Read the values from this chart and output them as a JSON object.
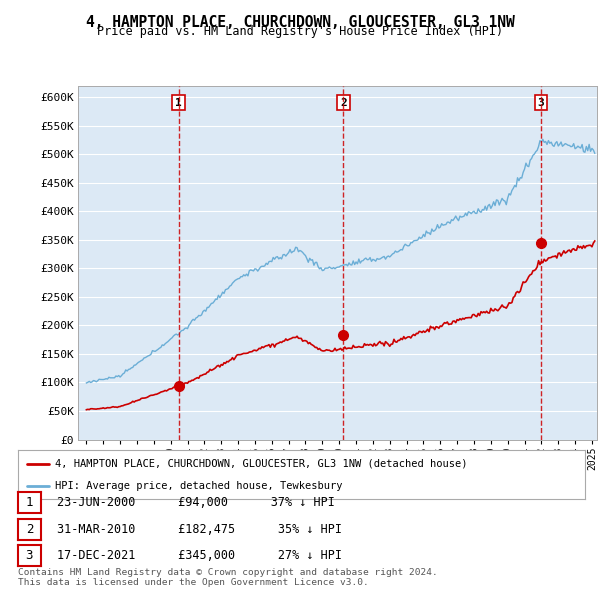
{
  "title": "4, HAMPTON PLACE, CHURCHDOWN, GLOUCESTER, GL3 1NW",
  "subtitle": "Price paid vs. HM Land Registry's House Price Index (HPI)",
  "ylabel_ticks": [
    "£0",
    "£50K",
    "£100K",
    "£150K",
    "£200K",
    "£250K",
    "£300K",
    "£350K",
    "£400K",
    "£450K",
    "£500K",
    "£550K",
    "£600K"
  ],
  "ylim": [
    0,
    620000
  ],
  "ytick_vals": [
    0,
    50000,
    100000,
    150000,
    200000,
    250000,
    300000,
    350000,
    400000,
    450000,
    500000,
    550000,
    600000
  ],
  "bg_color": "#dce9f5",
  "sale_color": "#cc0000",
  "hpi_color": "#6baed6",
  "sale_dates": [
    2000.47,
    2010.25,
    2021.96
  ],
  "sale_prices": [
    94000,
    182475,
    345000
  ],
  "sale_labels": [
    "1",
    "2",
    "3"
  ],
  "legend_sale": "4, HAMPTON PLACE, CHURCHDOWN, GLOUCESTER, GL3 1NW (detached house)",
  "legend_hpi": "HPI: Average price, detached house, Tewkesbury",
  "table_rows": [
    [
      "1",
      "23-JUN-2000",
      "£94,000",
      "37% ↓ HPI"
    ],
    [
      "2",
      "31-MAR-2010",
      "£182,475",
      "35% ↓ HPI"
    ],
    [
      "3",
      "17-DEC-2021",
      "£345,000",
      "27% ↓ HPI"
    ]
  ],
  "footnote1": "Contains HM Land Registry data © Crown copyright and database right 2024.",
  "footnote2": "This data is licensed under the Open Government Licence v3.0.",
  "xmin": 1994.5,
  "xmax": 2025.3
}
